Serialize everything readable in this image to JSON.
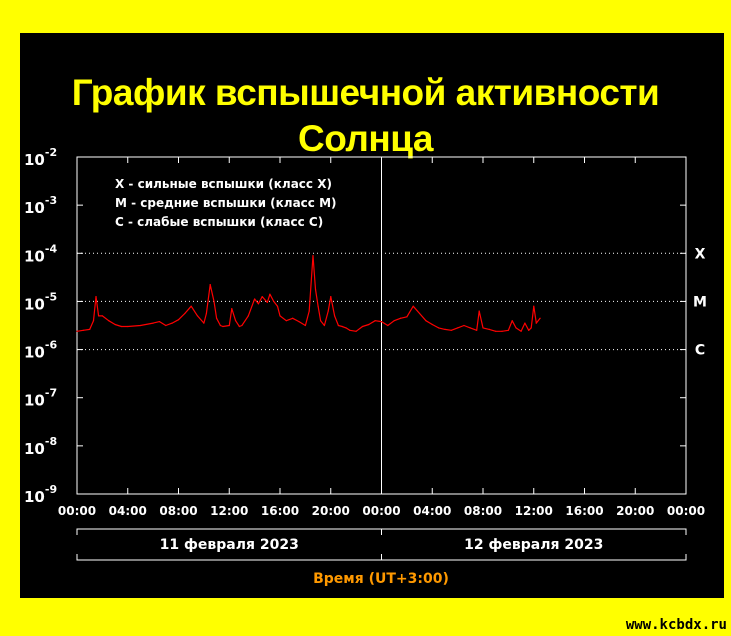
{
  "title": "График вспышечной активности Солнца",
  "watermark": "www.kcbdx.ru",
  "colors": {
    "background": "#ffff00",
    "panel": "#000000",
    "line": "#ff0000",
    "text": "#ffffff",
    "title": "#ffff00",
    "time_label": "#ff9900"
  },
  "chart_data": {
    "type": "line",
    "title": "График вспышечной активности Солнца",
    "xlabel": "Время (UT+3:00)",
    "ylabel": "",
    "yscale": "log",
    "ylim_exponents": [
      -9,
      -2
    ],
    "y_ticks": [
      {
        "base": "10",
        "exp": "-2",
        "e": -2
      },
      {
        "base": "10",
        "exp": "-3",
        "e": -3
      },
      {
        "base": "10",
        "exp": "-4",
        "e": -4
      },
      {
        "base": "10",
        "exp": "-5",
        "e": -5
      },
      {
        "base": "10",
        "exp": "-6",
        "e": -6
      },
      {
        "base": "10",
        "exp": "-7",
        "e": -7
      },
      {
        "base": "10",
        "exp": "-8",
        "e": -8
      },
      {
        "base": "10",
        "exp": "-9",
        "e": -9
      }
    ],
    "x_range_hours": [
      0,
      48
    ],
    "x_ticks": [
      "00:00",
      "04:00",
      "08:00",
      "12:00",
      "16:00",
      "20:00",
      "00:00",
      "04:00",
      "08:00",
      "12:00",
      "16:00",
      "20:00",
      "00:00"
    ],
    "days": [
      "11 февраля 2023",
      "12 февраля 2023"
    ],
    "class_lines": [
      {
        "label": "X",
        "e": -4
      },
      {
        "label": "M",
        "e": -5
      },
      {
        "label": "C",
        "e": -6
      }
    ],
    "legend": [
      "X - сильные вспышки (класс X)",
      "M - средние вспышки (класс M)",
      "C - слабые вспышки (класс C)"
    ],
    "legend_position": "top-left",
    "series": [
      {
        "color": "#ff0000",
        "x_hours": [
          0,
          0.5,
          1,
          1.3,
          1.5,
          1.7,
          2,
          2.5,
          3,
          3.5,
          4,
          5,
          6,
          6.5,
          7,
          7.5,
          8,
          8.5,
          9,
          9.5,
          10,
          10.2,
          10.5,
          10.8,
          11,
          11.3,
          11.5,
          12,
          12.2,
          12.5,
          12.8,
          13,
          13.5,
          14,
          14.3,
          14.6,
          15,
          15.2,
          15.5,
          15.8,
          16,
          16.5,
          17,
          17.5,
          18,
          18.3,
          18.6,
          18.8,
          19,
          19.2,
          19.5,
          19.8,
          20,
          20.3,
          20.6,
          20.9,
          21.2,
          21.5,
          22,
          22.5,
          23,
          23.5,
          24,
          24.5,
          25,
          25.5,
          26,
          26.5,
          27,
          27.5,
          28,
          28.5,
          29,
          29.5,
          30,
          30.5,
          31,
          31.5,
          31.7,
          32,
          32.5,
          33,
          33.5,
          34,
          34.3,
          34.6,
          35,
          35.3,
          35.6,
          35.8,
          36,
          36.2,
          36.5
        ],
        "y_log10": [
          -5.62,
          -5.6,
          -5.58,
          -5.4,
          -4.9,
          -5.3,
          -5.3,
          -5.4,
          -5.48,
          -5.52,
          -5.52,
          -5.5,
          -5.45,
          -5.42,
          -5.5,
          -5.45,
          -5.38,
          -5.25,
          -5.1,
          -5.3,
          -5.45,
          -5.25,
          -4.65,
          -5.0,
          -5.35,
          -5.5,
          -5.52,
          -5.5,
          -5.15,
          -5.4,
          -5.52,
          -5.5,
          -5.3,
          -4.95,
          -5.05,
          -4.9,
          -5.02,
          -4.85,
          -5.0,
          -5.1,
          -5.3,
          -5.4,
          -5.35,
          -5.42,
          -5.5,
          -5.2,
          -4.05,
          -4.75,
          -5.1,
          -5.4,
          -5.5,
          -5.2,
          -4.9,
          -5.3,
          -5.5,
          -5.52,
          -5.55,
          -5.6,
          -5.62,
          -5.52,
          -5.48,
          -5.4,
          -5.42,
          -5.5,
          -5.4,
          -5.35,
          -5.32,
          -5.1,
          -5.25,
          -5.4,
          -5.48,
          -5.55,
          -5.58,
          -5.6,
          -5.55,
          -5.5,
          -5.55,
          -5.6,
          -5.2,
          -5.55,
          -5.58,
          -5.62,
          -5.62,
          -5.6,
          -5.4,
          -5.55,
          -5.62,
          -5.45,
          -5.6,
          -5.55,
          -5.1,
          -5.45,
          -5.35
        ]
      }
    ]
  }
}
